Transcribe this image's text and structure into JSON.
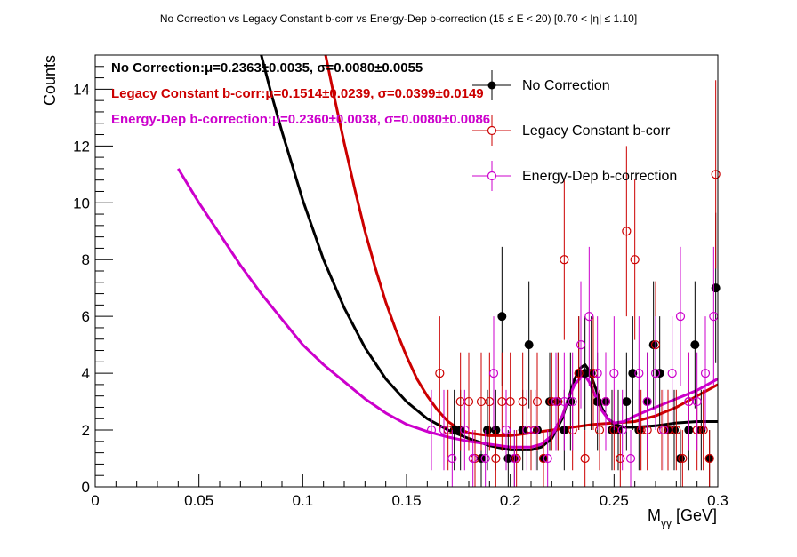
{
  "title": "No Correction vs Legacy Constant b-corr vs Energy-Dep b-correction   (15 ≤ E < 20)   [0.70 < |η| ≤ 1.10]",
  "colors": {
    "black": "#000000",
    "red": "#cc0000",
    "magenta": "#cc00cc",
    "frame": "#000000"
  },
  "chart_data": {
    "type": "scatter",
    "xlabel": "Mγγ [GeV]",
    "xlabel_main": "M",
    "xlabel_sub": "γγ",
    "xlabel_unit": " [GeV]",
    "ylabel": "Counts",
    "xlim": [
      0,
      0.3
    ],
    "ylim": [
      0,
      15.2
    ],
    "x_ticks": [
      0,
      0.05,
      0.1,
      0.15,
      0.2,
      0.25,
      0.3
    ],
    "x_tick_labels": [
      "0",
      "0.05",
      "0.1",
      "0.15",
      "0.2",
      "0.25",
      "0.3"
    ],
    "y_ticks": [
      0,
      2,
      4,
      6,
      8,
      10,
      12,
      14
    ],
    "y_tick_labels": [
      "0",
      "2",
      "4",
      "6",
      "8",
      "10",
      "12",
      "14"
    ],
    "legend_position": "top-right",
    "stats": [
      {
        "series": "No Correction",
        "label": "No Correction:",
        "value": "μ=0.2363±0.0035, σ=0.0080±0.0055",
        "color": "#000000"
      },
      {
        "series": "Legacy Constant b-corr",
        "label": "Legacy Constant b-corr:",
        "value": "μ=0.1514±0.0239, σ=0.0399±0.0149",
        "color": "#cc0000"
      },
      {
        "series": "Energy-Dep b-correction",
        "label": "Energy-Dep b-correction:",
        "value": "μ=0.2360±0.0038, σ=0.0080±0.0086",
        "color": "#cc00cc"
      }
    ],
    "series": [
      {
        "name": "No Correction",
        "color": "#000000",
        "marker": "filled",
        "x": [
          0.173,
          0.176,
          0.186,
          0.189,
          0.193,
          0.196,
          0.199,
          0.202,
          0.206,
          0.209,
          0.213,
          0.216,
          0.219,
          0.223,
          0.226,
          0.229,
          0.233,
          0.236,
          0.239,
          0.242,
          0.246,
          0.249,
          0.252,
          0.256,
          0.259,
          0.262,
          0.266,
          0.269,
          0.272,
          0.276,
          0.279,
          0.282,
          0.286,
          0.289,
          0.292,
          0.296,
          0.299
        ],
        "y": [
          2,
          2,
          1,
          2,
          2,
          6,
          1,
          1,
          2,
          5,
          2,
          1,
          3,
          3,
          2,
          3,
          4,
          4,
          4,
          3,
          3,
          2,
          2,
          3,
          4,
          2,
          3,
          5,
          4,
          2,
          2,
          1,
          2,
          5,
          2,
          1,
          7
        ]
      },
      {
        "name": "Legacy Constant b-corr",
        "color": "#cc0000",
        "marker": "open",
        "x": [
          0.166,
          0.17,
          0.176,
          0.18,
          0.183,
          0.186,
          0.19,
          0.193,
          0.196,
          0.2,
          0.203,
          0.206,
          0.21,
          0.213,
          0.216,
          0.22,
          0.223,
          0.226,
          0.23,
          0.233,
          0.236,
          0.24,
          0.243,
          0.246,
          0.25,
          0.253,
          0.256,
          0.26,
          0.263,
          0.266,
          0.27,
          0.273,
          0.276,
          0.28,
          0.283,
          0.286,
          0.29,
          0.293,
          0.296,
          0.299
        ],
        "y": [
          4,
          2,
          3,
          3,
          1,
          3,
          3,
          1,
          3,
          3,
          1,
          3,
          2,
          3,
          1,
          3,
          3,
          8,
          2,
          4,
          1,
          4,
          2,
          3,
          2,
          1,
          9,
          8,
          2,
          2,
          5,
          2,
          2,
          2,
          1,
          3,
          2,
          2,
          1,
          11
        ]
      },
      {
        "name": "Energy-Dep b-correction",
        "color": "#cc00cc",
        "marker": "open",
        "x": [
          0.162,
          0.168,
          0.172,
          0.178,
          0.182,
          0.188,
          0.192,
          0.198,
          0.202,
          0.208,
          0.212,
          0.218,
          0.222,
          0.226,
          0.23,
          0.234,
          0.238,
          0.242,
          0.246,
          0.25,
          0.254,
          0.258,
          0.262,
          0.266,
          0.27,
          0.274,
          0.278,
          0.282,
          0.286,
          0.29,
          0.294,
          0.298
        ],
        "y": [
          2,
          2,
          1,
          2,
          1,
          1,
          4,
          2,
          1,
          2,
          2,
          1,
          3,
          3,
          3,
          5,
          6,
          4,
          3,
          4,
          2,
          1,
          4,
          3,
          4,
          2,
          4,
          6,
          3,
          3,
          4,
          6
        ]
      }
    ],
    "curves": [
      {
        "series": "No Correction",
        "color": "#000000",
        "x": [
          0.08,
          0.085,
          0.09,
          0.095,
          0.1,
          0.11,
          0.12,
          0.13,
          0.14,
          0.15,
          0.16,
          0.17,
          0.18,
          0.19,
          0.2,
          0.21,
          0.215,
          0.22,
          0.225,
          0.228,
          0.231,
          0.234,
          0.236,
          0.238,
          0.241,
          0.244,
          0.247,
          0.25,
          0.255,
          0.26,
          0.27,
          0.28,
          0.29,
          0.3
        ],
        "y": [
          15.2,
          13.8,
          12.5,
          11.3,
          10.1,
          8.0,
          6.3,
          4.9,
          3.8,
          3.0,
          2.4,
          2.0,
          1.7,
          1.45,
          1.3,
          1.3,
          1.4,
          1.7,
          2.4,
          3.1,
          3.8,
          4.2,
          4.3,
          4.1,
          3.5,
          2.8,
          2.4,
          2.2,
          2.1,
          2.1,
          2.15,
          2.25,
          2.3,
          2.3
        ]
      },
      {
        "series": "Legacy Constant b-corr",
        "color": "#cc0000",
        "x": [
          0.111,
          0.115,
          0.12,
          0.125,
          0.13,
          0.135,
          0.14,
          0.145,
          0.15,
          0.155,
          0.16,
          0.165,
          0.17,
          0.175,
          0.18,
          0.19,
          0.2,
          0.21,
          0.22,
          0.23,
          0.24,
          0.25,
          0.26,
          0.27,
          0.28,
          0.29,
          0.3
        ],
        "y": [
          15.2,
          13.8,
          12.1,
          10.5,
          9.0,
          7.7,
          6.5,
          5.5,
          4.6,
          3.8,
          3.2,
          2.7,
          2.3,
          2.05,
          1.9,
          1.8,
          1.8,
          1.9,
          2.0,
          2.1,
          2.2,
          2.25,
          2.3,
          2.5,
          2.8,
          3.2,
          3.6
        ]
      },
      {
        "series": "Energy-Dep b-correction",
        "color": "#cc00cc",
        "x": [
          0.04,
          0.05,
          0.06,
          0.07,
          0.08,
          0.09,
          0.1,
          0.11,
          0.12,
          0.13,
          0.14,
          0.15,
          0.16,
          0.17,
          0.18,
          0.19,
          0.2,
          0.21,
          0.215,
          0.22,
          0.225,
          0.228,
          0.231,
          0.234,
          0.236,
          0.238,
          0.241,
          0.244,
          0.247,
          0.25,
          0.255,
          0.26,
          0.27,
          0.28,
          0.29,
          0.3
        ],
        "y": [
          11.2,
          10.0,
          8.9,
          7.8,
          6.8,
          5.9,
          5.0,
          4.3,
          3.7,
          3.1,
          2.6,
          2.2,
          1.95,
          1.75,
          1.6,
          1.5,
          1.4,
          1.4,
          1.5,
          1.8,
          2.5,
          3.1,
          3.6,
          3.85,
          3.9,
          3.7,
          3.2,
          2.7,
          2.4,
          2.25,
          2.3,
          2.5,
          2.8,
          3.1,
          3.4,
          3.8
        ]
      }
    ]
  }
}
